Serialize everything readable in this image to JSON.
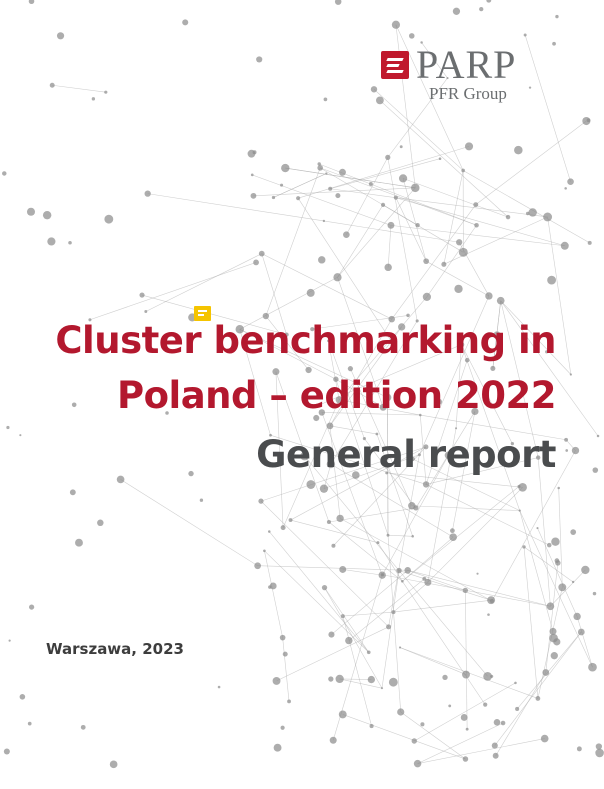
{
  "logo": {
    "name": "PARP",
    "group": "PFR Group",
    "brand_color": "#c0192d"
  },
  "cover": {
    "title_line1": "Cluster benchmarking in",
    "title_line2": "Poland – edition 2022",
    "subtitle": "General report",
    "place_year": "Warszawa, 2023",
    "title_color": "#b3182e",
    "subtitle_color": "#4a4c4e"
  },
  "icons": {
    "comment": "comment-icon",
    "background": "network-graph"
  }
}
